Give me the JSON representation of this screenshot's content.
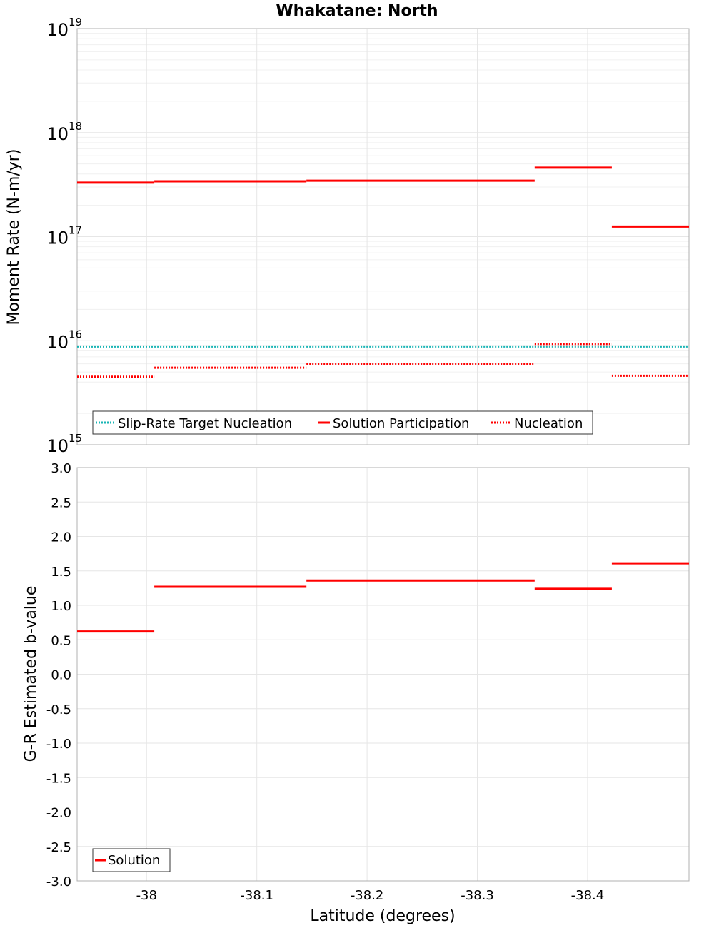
{
  "chart_data": [
    {
      "type": "line",
      "title": "Whakatane: North",
      "xlabel": "Latitude (degrees)",
      "ylabel": "Moment Rate (N-m/yr)",
      "yscale": "log",
      "ylim": [
        1000000000000000.0,
        1e+19
      ],
      "xlim": [
        -37.937,
        -38.492
      ],
      "x_ticks": [
        "-38",
        "-38.1",
        "-38.2",
        "-38.3",
        "-38.4"
      ],
      "y_ticks": [
        {
          "base": "10",
          "exp": "15",
          "value": 1000000000000000.0
        },
        {
          "base": "10",
          "exp": "16",
          "value": 1e+16
        },
        {
          "base": "10",
          "exp": "17",
          "value": 1e+17
        },
        {
          "base": "10",
          "exp": "18",
          "value": 1e+18
        },
        {
          "base": "10",
          "exp": "19",
          "value": 1e+19
        }
      ],
      "series": [
        {
          "name": "Slip-Rate Target Nucleation",
          "style": "dotted",
          "color": "#18b4b4",
          "segments": [
            {
              "x0": -37.937,
              "x1": -38.007,
              "value": 8800000000000000.0
            },
            {
              "x0": -38.007,
              "x1": -38.145,
              "value": 8800000000000000.0
            },
            {
              "x0": -38.145,
              "x1": -38.352,
              "value": 8800000000000000.0
            },
            {
              "x0": -38.352,
              "x1": -38.422,
              "value": 8800000000000000.0
            },
            {
              "x0": -38.422,
              "x1": -38.492,
              "value": 8800000000000000.0
            }
          ]
        },
        {
          "name": "Solution Participation",
          "style": "solid",
          "color": "#ff0000",
          "segments": [
            {
              "x0": -37.937,
              "x1": -38.007,
              "value": 3.3e+17
            },
            {
              "x0": -38.007,
              "x1": -38.145,
              "value": 3.4e+17
            },
            {
              "x0": -38.145,
              "x1": -38.352,
              "value": 3.45e+17
            },
            {
              "x0": -38.352,
              "x1": -38.422,
              "value": 4.6e+17
            },
            {
              "x0": -38.422,
              "x1": -38.492,
              "value": 1.25e+17
            }
          ]
        },
        {
          "name": "Nucleation",
          "style": "dotted",
          "color": "#ff0000",
          "segments": [
            {
              "x0": -37.937,
              "x1": -38.007,
              "value": 4500000000000000.0
            },
            {
              "x0": -38.007,
              "x1": -38.145,
              "value": 5500000000000000.0
            },
            {
              "x0": -38.145,
              "x1": -38.352,
              "value": 6000000000000000.0
            },
            {
              "x0": -38.352,
              "x1": -38.422,
              "value": 9300000000000000.0
            },
            {
              "x0": -38.422,
              "x1": -38.492,
              "value": 4600000000000000.0
            }
          ]
        }
      ],
      "legend_position": "bottom-left"
    },
    {
      "type": "line",
      "xlabel": "Latitude (degrees)",
      "ylabel": "G-R Estimated b-value",
      "ylim": [
        -3.0,
        3.0
      ],
      "xlim": [
        -37.937,
        -38.492
      ],
      "x_ticks": [
        "-38",
        "-38.1",
        "-38.2",
        "-38.3",
        "-38.4"
      ],
      "y_ticks": [
        "3.0",
        "2.5",
        "2.0",
        "1.5",
        "1.0",
        "0.5",
        "0.0",
        "-0.5",
        "-1.0",
        "-1.5",
        "-2.0",
        "-2.5",
        "-3.0"
      ],
      "series": [
        {
          "name": "Solution",
          "style": "solid",
          "color": "#ff0000",
          "segments": [
            {
              "x0": -37.937,
              "x1": -38.007,
              "value": 0.62
            },
            {
              "x0": -38.007,
              "x1": -38.145,
              "value": 1.27
            },
            {
              "x0": -38.145,
              "x1": -38.352,
              "value": 1.36
            },
            {
              "x0": -38.352,
              "x1": -38.422,
              "value": 1.24
            },
            {
              "x0": -38.422,
              "x1": -38.492,
              "value": 1.61
            }
          ]
        }
      ],
      "legend_position": "bottom-left"
    }
  ]
}
